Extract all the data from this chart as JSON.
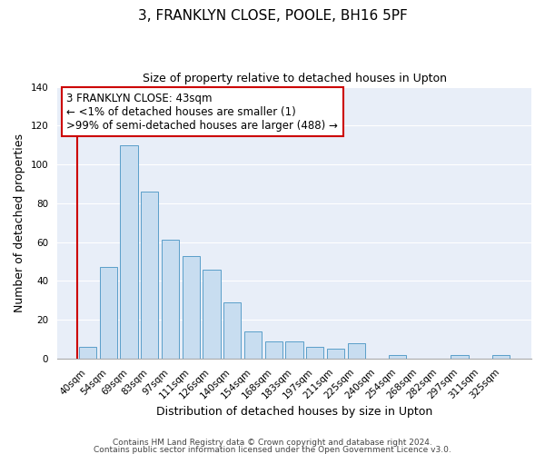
{
  "title": "3, FRANKLYN CLOSE, POOLE, BH16 5PF",
  "subtitle": "Size of property relative to detached houses in Upton",
  "xlabel": "Distribution of detached houses by size in Upton",
  "ylabel": "Number of detached properties",
  "bar_labels": [
    "40sqm",
    "54sqm",
    "69sqm",
    "83sqm",
    "97sqm",
    "111sqm",
    "126sqm",
    "140sqm",
    "154sqm",
    "168sqm",
    "183sqm",
    "197sqm",
    "211sqm",
    "225sqm",
    "240sqm",
    "254sqm",
    "268sqm",
    "282sqm",
    "297sqm",
    "311sqm",
    "325sqm"
  ],
  "bar_values": [
    6,
    47,
    110,
    86,
    61,
    53,
    46,
    29,
    14,
    9,
    9,
    6,
    5,
    8,
    0,
    2,
    0,
    0,
    2,
    0,
    2
  ],
  "bar_color": "#c8ddf0",
  "bar_edge_color": "#5a9ec9",
  "highlight_color": "#cc0000",
  "ylim": [
    0,
    140
  ],
  "yticks": [
    0,
    20,
    40,
    60,
    80,
    100,
    120,
    140
  ],
  "annotation_title": "3 FRANKLYN CLOSE: 43sqm",
  "annotation_line1": "← <1% of detached houses are smaller (1)",
  "annotation_line2": ">99% of semi-detached houses are larger (488) →",
  "annotation_box_color": "#ffffff",
  "annotation_box_edge": "#cc0000",
  "footer_line1": "Contains HM Land Registry data © Crown copyright and database right 2024.",
  "footer_line2": "Contains public sector information licensed under the Open Government Licence v3.0.",
  "background_color": "#ffffff",
  "plot_bg_color": "#e8eef8",
  "grid_color": "#ffffff",
  "title_fontsize": 11,
  "subtitle_fontsize": 9,
  "ylabel_fontsize": 9,
  "xlabel_fontsize": 9,
  "tick_fontsize": 7.5,
  "footer_fontsize": 6.5
}
